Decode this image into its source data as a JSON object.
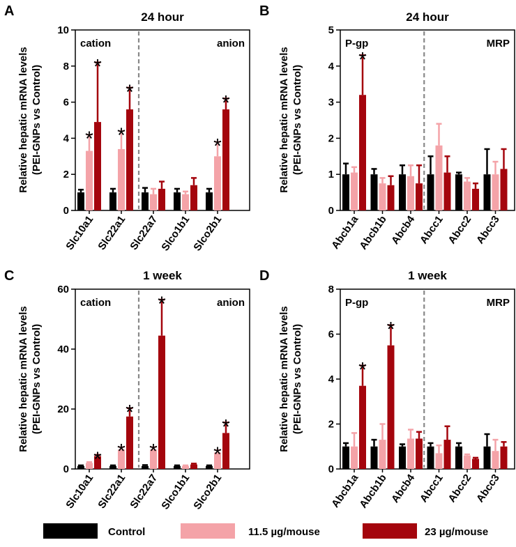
{
  "figure": {
    "colors": {
      "control": "#000000",
      "mid": "#f4a3a8",
      "high": "#a4050d",
      "divider": "#888888"
    },
    "legend": [
      {
        "key": "control",
        "label": "Control"
      },
      {
        "key": "mid",
        "label": "11.5 µg/mouse"
      },
      {
        "key": "high",
        "label": "23 µg/mouse"
      }
    ]
  },
  "chart_data": [
    {
      "type": "bar",
      "panel": "A",
      "title": "24 hour",
      "ylabel": [
        "Relative hepatic mRNA levels",
        "(PEI-GNPs vs Control)"
      ],
      "ylim": [
        0,
        10
      ],
      "yticks": [
        0,
        2,
        4,
        6,
        8,
        10
      ],
      "groups": [
        "cation",
        "anion"
      ],
      "divider_after": 2,
      "categories": [
        "Slc10a1",
        "Slc22a1",
        "Slc22a7",
        "Slco1b1",
        "Slco2b1"
      ],
      "series": [
        {
          "name": "Control",
          "key": "control",
          "values": [
            1.0,
            1.0,
            1.0,
            1.0,
            1.0
          ],
          "errors": [
            0.15,
            0.2,
            0.25,
            0.2,
            0.2
          ]
        },
        {
          "name": "11.5 µg/mouse",
          "key": "mid",
          "values": [
            3.3,
            3.4,
            0.9,
            0.9,
            3.0
          ],
          "errors": [
            0.9,
            1.0,
            0.3,
            0.15,
            0.8
          ]
        },
        {
          "name": "23 µg/mouse",
          "key": "high",
          "values": [
            4.9,
            5.6,
            1.2,
            1.4,
            5.6
          ],
          "errors": [
            3.3,
            1.2,
            0.4,
            0.4,
            0.6
          ]
        }
      ],
      "significant": [
        [
          1,
          0
        ],
        [
          2,
          0
        ],
        [
          1,
          1
        ],
        [
          2,
          1
        ],
        [
          1,
          4
        ],
        [
          2,
          4
        ]
      ]
    },
    {
      "type": "bar",
      "panel": "B",
      "title": "24 hour",
      "ylabel": [
        "Relative hepatic mRNA levels",
        "(PEI-GNPs vs Control)"
      ],
      "ylim": [
        0,
        5
      ],
      "yticks": [
        0,
        1,
        2,
        3,
        4,
        5
      ],
      "groups": [
        "P-gp",
        "MRP"
      ],
      "divider_after": 3,
      "categories": [
        "Abcb1a",
        "Abcb1b",
        "Abcb4",
        "Abcc1",
        "Abcc2",
        "Abcc3"
      ],
      "series": [
        {
          "name": "Control",
          "key": "control",
          "values": [
            1.0,
            1.0,
            1.0,
            1.0,
            1.0,
            1.0
          ],
          "errors": [
            0.3,
            0.15,
            0.25,
            0.5,
            0.05,
            0.7
          ]
        },
        {
          "name": "11.5 µg/mouse",
          "key": "mid",
          "values": [
            1.05,
            0.75,
            0.95,
            1.8,
            0.8,
            1.0
          ],
          "errors": [
            0.15,
            0.15,
            0.3,
            0.6,
            0.1,
            0.35
          ]
        },
        {
          "name": "23 µg/mouse",
          "key": "high",
          "values": [
            3.2,
            0.7,
            0.75,
            1.05,
            0.6,
            1.15
          ],
          "errors": [
            1.1,
            0.25,
            0.5,
            0.45,
            0.15,
            0.55
          ]
        }
      ],
      "significant": [
        [
          2,
          0
        ]
      ]
    },
    {
      "type": "bar",
      "panel": "C",
      "title": "1 week",
      "ylabel": [
        "Relative hepatic mRNA levels",
        "(PEI-GNPs vs Control)"
      ],
      "ylim": [
        0,
        60
      ],
      "yticks": [
        0,
        20,
        40,
        60
      ],
      "groups": [
        "cation",
        "anion"
      ],
      "divider_after": 2,
      "categories": [
        "Slc10a1",
        "Slc22a1",
        "Slc22a7",
        "Slco1b1",
        "Slco2b1"
      ],
      "series": [
        {
          "name": "Control",
          "key": "control",
          "values": [
            1.0,
            1.0,
            1.0,
            1.0,
            1.0
          ],
          "errors": [
            0.2,
            0.2,
            0.3,
            0.2,
            0.2
          ]
        },
        {
          "name": "11.5 µg/mouse",
          "key": "mid",
          "values": [
            2.0,
            6.5,
            6.5,
            1.0,
            5.5
          ],
          "errors": [
            0.3,
            0.8,
            0.8,
            0.2,
            0.8
          ]
        },
        {
          "name": "23 µg/mouse",
          "key": "high",
          "values": [
            4.3,
            17.5,
            44.5,
            1.5,
            12.0
          ],
          "errors": [
            0.4,
            2.8,
            12.0,
            0.3,
            3.5
          ]
        }
      ],
      "significant": [
        [
          2,
          0
        ],
        [
          1,
          1
        ],
        [
          2,
          1
        ],
        [
          1,
          2
        ],
        [
          2,
          2
        ],
        [
          1,
          4
        ],
        [
          2,
          4
        ]
      ]
    },
    {
      "type": "bar",
      "panel": "D",
      "title": "1 week",
      "ylabel": [
        "Relative hepatic mRNA levels",
        "(PEI-GNPs vs Control)"
      ],
      "ylim": [
        0,
        8
      ],
      "yticks": [
        0,
        2,
        4,
        6,
        8
      ],
      "groups": [
        "P-gp",
        "MRP"
      ],
      "divider_after": 3,
      "categories": [
        "Abcb1a",
        "Abcb1b",
        "Abcb4",
        "Abcc1",
        "Abcc2",
        "Abcc3"
      ],
      "series": [
        {
          "name": "Control",
          "key": "control",
          "values": [
            1.0,
            1.0,
            1.0,
            1.0,
            1.0,
            1.0
          ],
          "errors": [
            0.15,
            0.3,
            0.1,
            0.15,
            0.15,
            0.55
          ]
        },
        {
          "name": "11.5 µg/mouse",
          "key": "mid",
          "values": [
            1.0,
            1.3,
            1.35,
            0.7,
            0.6,
            0.8
          ],
          "errors": [
            0.6,
            0.7,
            0.4,
            0.35,
            0.05,
            0.5
          ]
        },
        {
          "name": "23 µg/mouse",
          "key": "high",
          "values": [
            3.7,
            5.5,
            1.35,
            1.3,
            0.45,
            1.0
          ],
          "errors": [
            0.9,
            0.9,
            0.3,
            0.6,
            0.05,
            0.2
          ]
        }
      ],
      "significant": [
        [
          2,
          0
        ],
        [
          2,
          1
        ]
      ]
    }
  ]
}
